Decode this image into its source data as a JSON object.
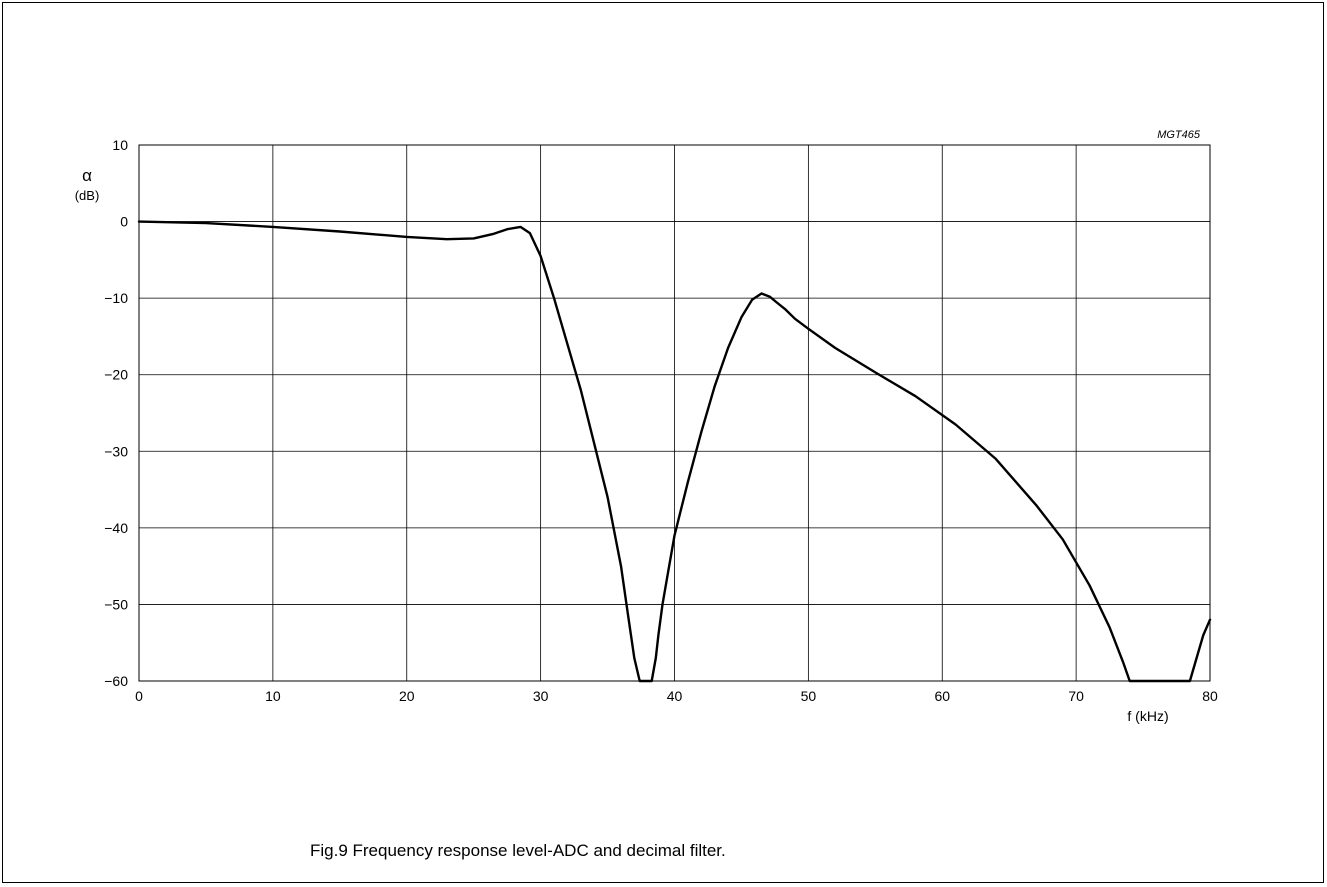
{
  "chart_data": {
    "type": "line",
    "code_label": "MGT465",
    "ylabel_symbol": "α",
    "ylabel_unit": "(dB)",
    "xlabel": "f (kHz)",
    "xlim": [
      0,
      80
    ],
    "ylim": [
      -60,
      10
    ],
    "x_ticks": [
      0,
      10,
      20,
      30,
      40,
      50,
      60,
      70,
      80
    ],
    "y_ticks": [
      10,
      0,
      -10,
      -20,
      -30,
      -40,
      -50,
      -60
    ],
    "x_tick_labels": [
      "0",
      "10",
      "20",
      "30",
      "40",
      "50",
      "60",
      "70",
      "80"
    ],
    "y_tick_labels": [
      "10",
      "0",
      "−10",
      "−20",
      "−30",
      "−40",
      "−50",
      "−60"
    ],
    "grid": true,
    "series": [
      {
        "x": [
          0,
          5,
          10,
          15,
          20,
          23,
          25,
          26.5,
          27.5,
          28.5,
          29.2,
          30,
          31,
          32,
          33,
          34,
          35,
          36,
          36.5,
          37,
          37.4,
          37.7,
          38,
          38.3,
          38.6,
          38.8,
          39.1,
          39.5,
          40,
          41,
          42,
          43,
          44,
          45,
          45.8,
          46.5,
          47.1,
          47.6,
          48.3,
          49,
          50,
          52,
          55,
          58,
          61,
          64,
          67,
          69,
          71,
          72.5,
          73.5,
          74,
          78.5,
          79,
          79.5,
          80
        ],
        "y": [
          0,
          -0.2,
          -0.7,
          -1.3,
          -2,
          -2.3,
          -2.2,
          -1.6,
          -1,
          -0.7,
          -1.5,
          -4.5,
          -10,
          -16,
          -22,
          -29,
          -36,
          -45,
          -51,
          -57,
          -60,
          -60,
          -60,
          -60,
          -57,
          -54,
          -50,
          -46,
          -41,
          -34,
          -27.5,
          -21.5,
          -16.5,
          -12.5,
          -10.2,
          -9.4,
          -9.8,
          -10.5,
          -11.5,
          -12.7,
          -14,
          -16.5,
          -19.7,
          -22.8,
          -26.5,
          -31,
          -37,
          -41.5,
          -47.5,
          -53,
          -57.5,
          -60,
          -60,
          -57,
          -54,
          -52
        ]
      }
    ]
  },
  "caption": "Fig.9  Frequency response level-ADC and decimal filter."
}
